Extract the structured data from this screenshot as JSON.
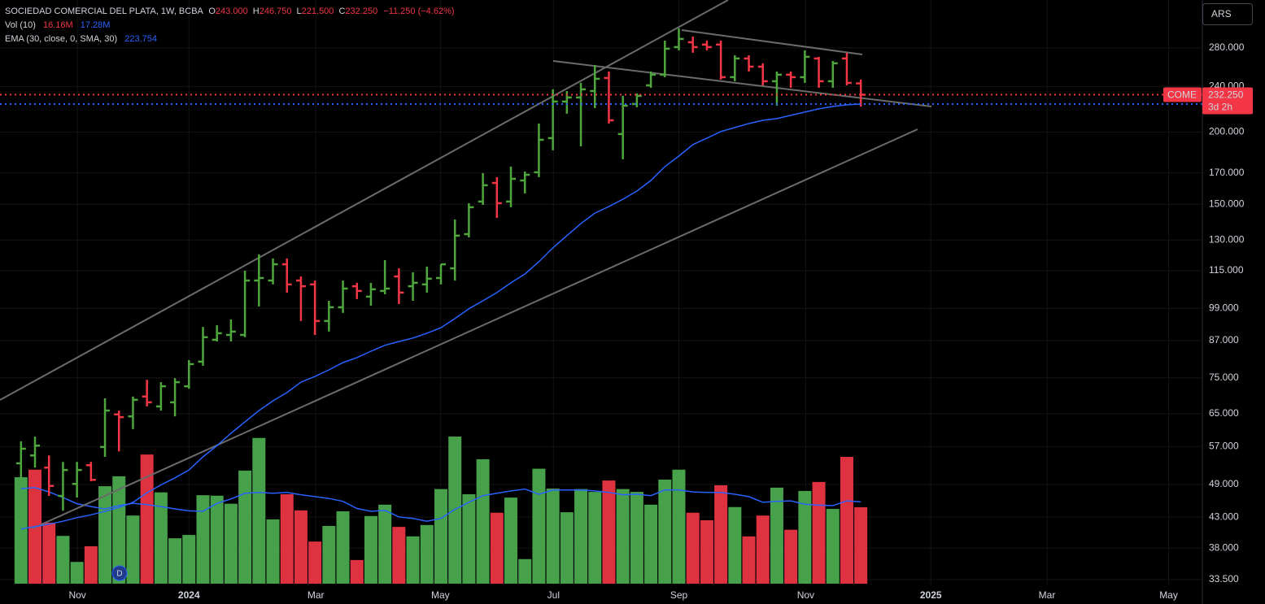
{
  "chart_data": {
    "type": "ohlc",
    "legend": {
      "title": "SOCIEDAD COMERCIAL DEL PLATA, 1W, BCBA",
      "o": "O",
      "open": "243.000",
      "h": "H",
      "high": "246.750",
      "l": "L",
      "low": "221.500",
      "c": "C",
      "close": "232.250",
      "change": "−11.250 (−4.62%)",
      "volume_name": "Vol (10)",
      "volume": "16.16M",
      "volume_ma": "17.28M",
      "ema_name": "EMA (30, close, 0, SMA, 30)",
      "ema": "223.754"
    },
    "currency": "ARS",
    "price_tag": {
      "symbol": "COME",
      "price": "232.250",
      "countdown": "3d 2h"
    },
    "event_marker": "D",
    "log_scale": true,
    "grid": true,
    "up_color": "#4fa63c",
    "down_color": "#f23645",
    "categories": [
      null,
      null,
      null,
      null,
      null,
      null,
      null,
      null,
      null,
      null,
      null,
      null,
      null,
      null,
      null,
      null,
      null,
      null,
      null,
      null,
      null,
      null,
      null,
      null,
      null,
      null,
      null,
      null,
      null,
      null,
      null,
      null,
      null,
      null,
      null,
      null,
      null,
      null,
      null,
      null,
      null,
      null,
      null,
      null,
      null,
      null,
      null,
      null,
      null,
      null,
      null,
      null,
      null,
      null,
      null,
      null,
      null,
      null,
      null,
      null,
      null
    ],
    "open": [
      53.3,
      55.0,
      52.4,
      46.8,
      49.1,
      52.9,
      56.9,
      64.8,
      64.3,
      69.6,
      66.9,
      68.0,
      72.5,
      80.0,
      87.3,
      89.0,
      89.0,
      110.6,
      110.6,
      118.0,
      110.6,
      108.9,
      94.1,
      99.4,
      108.1,
      103.7,
      106.1,
      112.4,
      108.1,
      108.9,
      111.7,
      116.1,
      133.1,
      151.6,
      163.3,
      151.6,
      164.9,
      170.4,
      195.3,
      226.0,
      229.7,
      235.7,
      248.3,
      198.5,
      223.8,
      241.1,
      251.6,
      280.9,
      286.4,
      283.7,
      283.7,
      249.1,
      268.4,
      259.8,
      245.1,
      251.6,
      249.1,
      268.4,
      245.1,
      268.4,
      243
    ],
    "high": [
      58.2,
      59.3,
      55.0,
      53.6,
      53.6,
      53.6,
      69.1,
      65.8,
      69.6,
      74.4,
      73.7,
      74.9,
      80.5,
      91.9,
      92.5,
      94.7,
      115.0,
      122.8,
      120.8,
      120.8,
      112.4,
      110.6,
      102.0,
      110.6,
      109.6,
      109.6,
      120.0,
      116.1,
      114.3,
      116.9,
      118.0,
      141.1,
      150.6,
      169.8,
      167.1,
      174.3,
      170.9,
      207.0,
      237.3,
      235.7,
      243.5,
      261.5,
      254.8,
      231.2,
      233.5,
      254.8,
      288.3,
      302.7,
      293.0,
      288.3,
      288.3,
      271.9,
      271.9,
      263.3,
      254.8,
      254.8,
      277.3,
      270.2,
      265.8,
      274.6,
      246.75
    ],
    "low": [
      49.9,
      52.4,
      46.8,
      44.1,
      46.5,
      49.6,
      54.7,
      55.9,
      61.1,
      66.9,
      65.8,
      64.3,
      71.8,
      78.7,
      86.7,
      86.7,
      88.2,
      99.7,
      108.9,
      105.4,
      94.1,
      89.0,
      90.2,
      97.2,
      102.7,
      100.0,
      104.7,
      100.7,
      102.0,
      105.4,
      108.9,
      110.6,
      131.4,
      149.6,
      142.0,
      148.2,
      156.6,
      167.1,
      186.0,
      215.3,
      189.0,
      220.2,
      207.0,
      179.5,
      220.9,
      238.8,
      249.1,
      277.3,
      274.6,
      277.3,
      246.7,
      245.1,
      254.8,
      241.1,
      222.3,
      238.8,
      243.5,
      238.8,
      238.8,
      241.1,
      221.5
    ],
    "close": [
      56.5,
      57.2,
      48.7,
      51.9,
      51.9,
      49.9,
      65.8,
      64.1,
      68.7,
      68.0,
      72.5,
      73.7,
      79.2,
      88.2,
      89.6,
      90.2,
      110.6,
      111.7,
      118.0,
      108.9,
      108.1,
      94.1,
      99.4,
      107.1,
      106.1,
      106.8,
      107.1,
      105.4,
      109.6,
      111.4,
      118.0,
      132.3,
      148.2,
      161.8,
      150.6,
      166.0,
      168.7,
      194.0,
      226.0,
      229.7,
      237.3,
      247.5,
      209.7,
      222.3,
      231.2,
      251.6,
      279.1,
      290.2,
      280.9,
      280.9,
      249.1,
      268.4,
      259.8,
      245.1,
      251.6,
      249.1,
      270.2,
      245.1,
      263.3,
      243.5,
      232.25
    ],
    "ema": {
      "color": "#2962ff",
      "values": [
        41.0,
        41.4,
        41.8,
        42.3,
        42.9,
        43.4,
        44.0,
        44.7,
        45.6,
        47.4,
        48.9,
        50.3,
        51.9,
        54.7,
        57.2,
        60.1,
        62.9,
        65.8,
        68.4,
        70.7,
        73.7,
        75.4,
        77.4,
        79.7,
        81.3,
        83.4,
        85.4,
        86.7,
        87.9,
        89.6,
        91.6,
        95.0,
        98.8,
        102.0,
        105.4,
        109.6,
        113.5,
        119.2,
        126.0,
        132.3,
        138.9,
        144.8,
        148.6,
        153.0,
        158.1,
        164.9,
        174.3,
        181.8,
        190.3,
        195.3,
        200.5,
        203.7,
        207.0,
        209.7,
        211.1,
        213.9,
        216.7,
        219.5,
        221.6,
        223.1,
        223.754
      ]
    },
    "volume": {
      "values": [
        22.5,
        24.1,
        12.9,
        10.1,
        4.6,
        7.9,
        20.6,
        22.7,
        14.4,
        27.3,
        19.3,
        9.6,
        10.3,
        18.7,
        18.6,
        16.9,
        23.9,
        30.8,
        13.6,
        18.9,
        15.5,
        8.9,
        12.2,
        15.3,
        5.0,
        14.3,
        16.7,
        12.0,
        10.0,
        12.4,
        20.0,
        31.1,
        18.9,
        26.3,
        15.0,
        18.2,
        5.2,
        24.3,
        20.1,
        15.1,
        20.0,
        19.4,
        21.8,
        20.0,
        19.4,
        16.7,
        22.0,
        24.1,
        15.0,
        13.4,
        20.8,
        16.2,
        10.0,
        14.4,
        20.3,
        11.4,
        19.6,
        21.5,
        15.8,
        26.8,
        16.16
      ],
      "colors": [
        "#4caf50",
        "#f23645",
        "#f23645",
        "#4caf50",
        "#4caf50",
        "#f23645",
        "#4caf50",
        "#4caf50",
        "#4caf50",
        "#f23645",
        "#4caf50",
        "#4caf50",
        "#4caf50",
        "#4caf50",
        "#4caf50",
        "#4caf50",
        "#4caf50",
        "#4caf50",
        "#4caf50",
        "#f23645",
        "#f23645",
        "#f23645",
        "#4caf50",
        "#4caf50",
        "#f23645",
        "#4caf50",
        "#4caf50",
        "#f23645",
        "#4caf50",
        "#4caf50",
        "#4caf50",
        "#4caf50",
        "#4caf50",
        "#4caf50",
        "#f23645",
        "#4caf50",
        "#4caf50",
        "#4caf50",
        "#4caf50",
        "#4caf50",
        "#4caf50",
        "#4caf50",
        "#f23645",
        "#4caf50",
        "#4caf50",
        "#4caf50",
        "#4caf50",
        "#4caf50",
        "#f23645",
        "#f23645",
        "#f23645",
        "#4caf50",
        "#f23645",
        "#f23645",
        "#4caf50",
        "#f23645",
        "#4caf50",
        "#f23645",
        "#4caf50",
        "#f23645",
        "#f23645"
      ],
      "ma_color": "#2962ff",
      "ma": [
        20.1,
        20.3,
        19.4,
        18.2,
        16.9,
        16.3,
        15.8,
        16.5,
        17.0,
        16.7,
        16.3,
        15.8,
        15.4,
        15.3,
        17.0,
        17.9,
        19.1,
        19.3,
        19.1,
        19.3,
        18.8,
        18.4,
        18.0,
        17.4,
        15.9,
        15.3,
        15.5,
        14.1,
        13.8,
        13.2,
        13.8,
        15.7,
        17.2,
        18.6,
        19.1,
        19.6,
        20.0,
        18.9,
        19.8,
        19.8,
        19.8,
        19.6,
        19.3,
        18.8,
        18.9,
        18.6,
        19.8,
        19.8,
        19.4,
        19.3,
        19.3,
        18.9,
        18.4,
        17.2,
        17.4,
        17.5,
        16.8,
        16.6,
        16.5,
        17.5,
        17.28
      ]
    },
    "xlim": [
      -1.5,
      84.4
    ],
    "xticks": [
      {
        "value": 4.03,
        "label": "Nov"
      },
      {
        "value": 12.0,
        "label": "2024"
      },
      {
        "value": 21.06,
        "label": "Mar"
      },
      {
        "value": 29.96,
        "label": "May"
      },
      {
        "value": 38.04,
        "label": "Jul"
      },
      {
        "value": 47.0,
        "label": "Sep"
      },
      {
        "value": 56.06,
        "label": "Nov"
      },
      {
        "value": 65.0,
        "label": "2025"
      },
      {
        "value": 73.3,
        "label": "Mar"
      },
      {
        "value": 81.99,
        "label": "May"
      }
    ],
    "ylim": [
      32.75,
      339
    ],
    "yticks": [
      {
        "value": 33.5,
        "label": "33.500"
      },
      {
        "value": 38,
        "label": "38.000"
      },
      {
        "value": 43,
        "label": "43.000"
      },
      {
        "value": 49,
        "label": "49.000"
      },
      {
        "value": 57,
        "label": "57.000"
      },
      {
        "value": 65,
        "label": "65.000"
      },
      {
        "value": 75,
        "label": "75.000"
      },
      {
        "value": 87,
        "label": "87.000"
      },
      {
        "value": 99,
        "label": "99.000"
      },
      {
        "value": 115,
        "label": "115.000"
      },
      {
        "value": 130,
        "label": "130.000"
      },
      {
        "value": 150,
        "label": "150.000"
      },
      {
        "value": 170,
        "label": "170.000"
      },
      {
        "value": 200,
        "label": "200.000"
      },
      {
        "value": 240,
        "label": "240.000"
      },
      {
        "value": 280,
        "label": "280.000"
      }
    ]
  }
}
